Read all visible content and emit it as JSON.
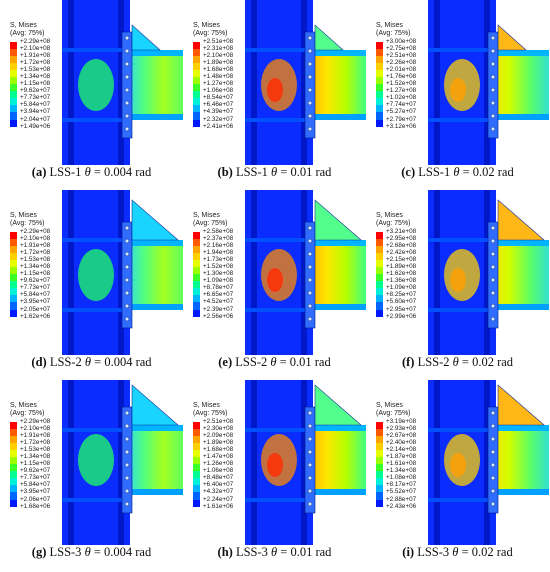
{
  "contour_colors": [
    "#ff0000",
    "#ff5a00",
    "#ffa500",
    "#ffd000",
    "#e6ff00",
    "#9cff00",
    "#3cff28",
    "#00ff90",
    "#00f0d8",
    "#00b4ff",
    "#0064ff",
    "#0018ff"
  ],
  "panels": [
    {
      "id": "a",
      "name": "LSS-1",
      "theta": "0.004",
      "unit": "rad",
      "title1": "S, Mises",
      "title2": "(Avg: 75%)",
      "values": [
        "+2.29e+08",
        "+2.10e+08",
        "+1.91e+08",
        "+1.72e+08",
        "+1.53e+08",
        "+1.34e+08",
        "+1.15e+08",
        "+9.62e+07",
        "+7.73e+07",
        "+5.84e+07",
        "+3.94e+07",
        "+2.04e+07",
        "+1.49e+06"
      ]
    },
    {
      "id": "b",
      "name": "LSS-1",
      "theta": "0.01",
      "unit": "rad",
      "title1": "S, Mises",
      "title2": "(Avg: 75%)",
      "values": [
        "+2.51e+08",
        "+2.31e+08",
        "+2.10e+08",
        "+1.89e+08",
        "+1.68e+08",
        "+1.48e+08",
        "+1.27e+08",
        "+1.06e+08",
        "+8.54e+07",
        "+6.46e+07",
        "+4.39e+07",
        "+2.32e+07",
        "+2.41e+06"
      ]
    },
    {
      "id": "c",
      "name": "LSS-1",
      "theta": "0.02",
      "unit": "rad",
      "title1": "S, Mises",
      "title2": "(Avg: 75%)",
      "values": [
        "+3.00e+08",
        "+2.75e+08",
        "+2.51e+08",
        "+2.26e+08",
        "+2.01e+08",
        "+1.76e+08",
        "+1.52e+08",
        "+1.27e+08",
        "+1.02e+08",
        "+7.74e+07",
        "+5.27e+07",
        "+2.79e+07",
        "+3.12e+06"
      ]
    },
    {
      "id": "d",
      "name": "LSS-2",
      "theta": "0.004",
      "unit": "rad",
      "title1": "S, Mises",
      "title2": "(Avg: 75%)",
      "values": [
        "+2.29e+08",
        "+2.10e+08",
        "+1.91e+08",
        "+1.72e+08",
        "+1.53e+08",
        "+1.34e+08",
        "+1.15e+08",
        "+9.62e+07",
        "+7.73e+07",
        "+5.84e+07",
        "+3.95e+07",
        "+2.05e+07",
        "+1.62e+06"
      ]
    },
    {
      "id": "e",
      "name": "LSS-2",
      "theta": "0.01",
      "unit": "rad",
      "title1": "S, Mises",
      "title2": "(Avg: 75%)",
      "values": [
        "+2.58e+08",
        "+2.37e+08",
        "+2.16e+08",
        "+1.94e+08",
        "+1.73e+08",
        "+1.52e+08",
        "+1.30e+08",
        "+1.09e+08",
        "+8.78e+07",
        "+6.65e+07",
        "+4.52e+07",
        "+2.39e+07",
        "+2.56e+06"
      ]
    },
    {
      "id": "f",
      "name": "LSS-2",
      "theta": "0.02",
      "unit": "rad",
      "title1": "S, Mises",
      "title2": "(Avg: 75%)",
      "values": [
        "+3.21e+08",
        "+2.95e+08",
        "+2.68e+08",
        "+2.42e+08",
        "+2.15e+08",
        "+1.89e+08",
        "+1.62e+08",
        "+1.36e+08",
        "+1.09e+08",
        "+8.25e+07",
        "+5.60e+07",
        "+2.95e+07",
        "+2.99e+06"
      ]
    },
    {
      "id": "g",
      "name": "LSS-3",
      "theta": "0.004",
      "unit": "rad",
      "title1": "S, Mises",
      "title2": "(Avg: 75%)",
      "values": [
        "+2.29e+08",
        "+2.10e+08",
        "+1.91e+08",
        "+1.72e+08",
        "+1.53e+08",
        "+1.34e+08",
        "+1.15e+08",
        "+9.62e+07",
        "+7.73e+07",
        "+5.84e+07",
        "+3.95e+07",
        "+2.06e+07",
        "+1.68e+06"
      ]
    },
    {
      "id": "h",
      "name": "LSS-3",
      "theta": "0.01",
      "unit": "rad",
      "title1": "S, Mises",
      "title2": "(Avg: 75%)",
      "values": [
        "+2.51e+08",
        "+2.30e+08",
        "+2.09e+08",
        "+1.89e+08",
        "+1.68e+08",
        "+1.47e+08",
        "+1.26e+08",
        "+1.06e+08",
        "+8.48e+07",
        "+6.40e+07",
        "+4.32e+07",
        "+2.24e+07",
        "+1.61e+06"
      ]
    },
    {
      "id": "i",
      "name": "LSS-3",
      "theta": "0.02",
      "unit": "rad",
      "title1": "S, Mises",
      "title2": "(Avg: 75%)",
      "values": [
        "+3.19e+08",
        "+2.93e+08",
        "+2.67e+08",
        "+2.40e+08",
        "+2.14e+08",
        "+1.87e+08",
        "+1.61e+08",
        "+1.34e+08",
        "+1.08e+08",
        "+8.17e+07",
        "+5.52e+07",
        "+2.88e+07",
        "+2.43e+06"
      ]
    }
  ]
}
